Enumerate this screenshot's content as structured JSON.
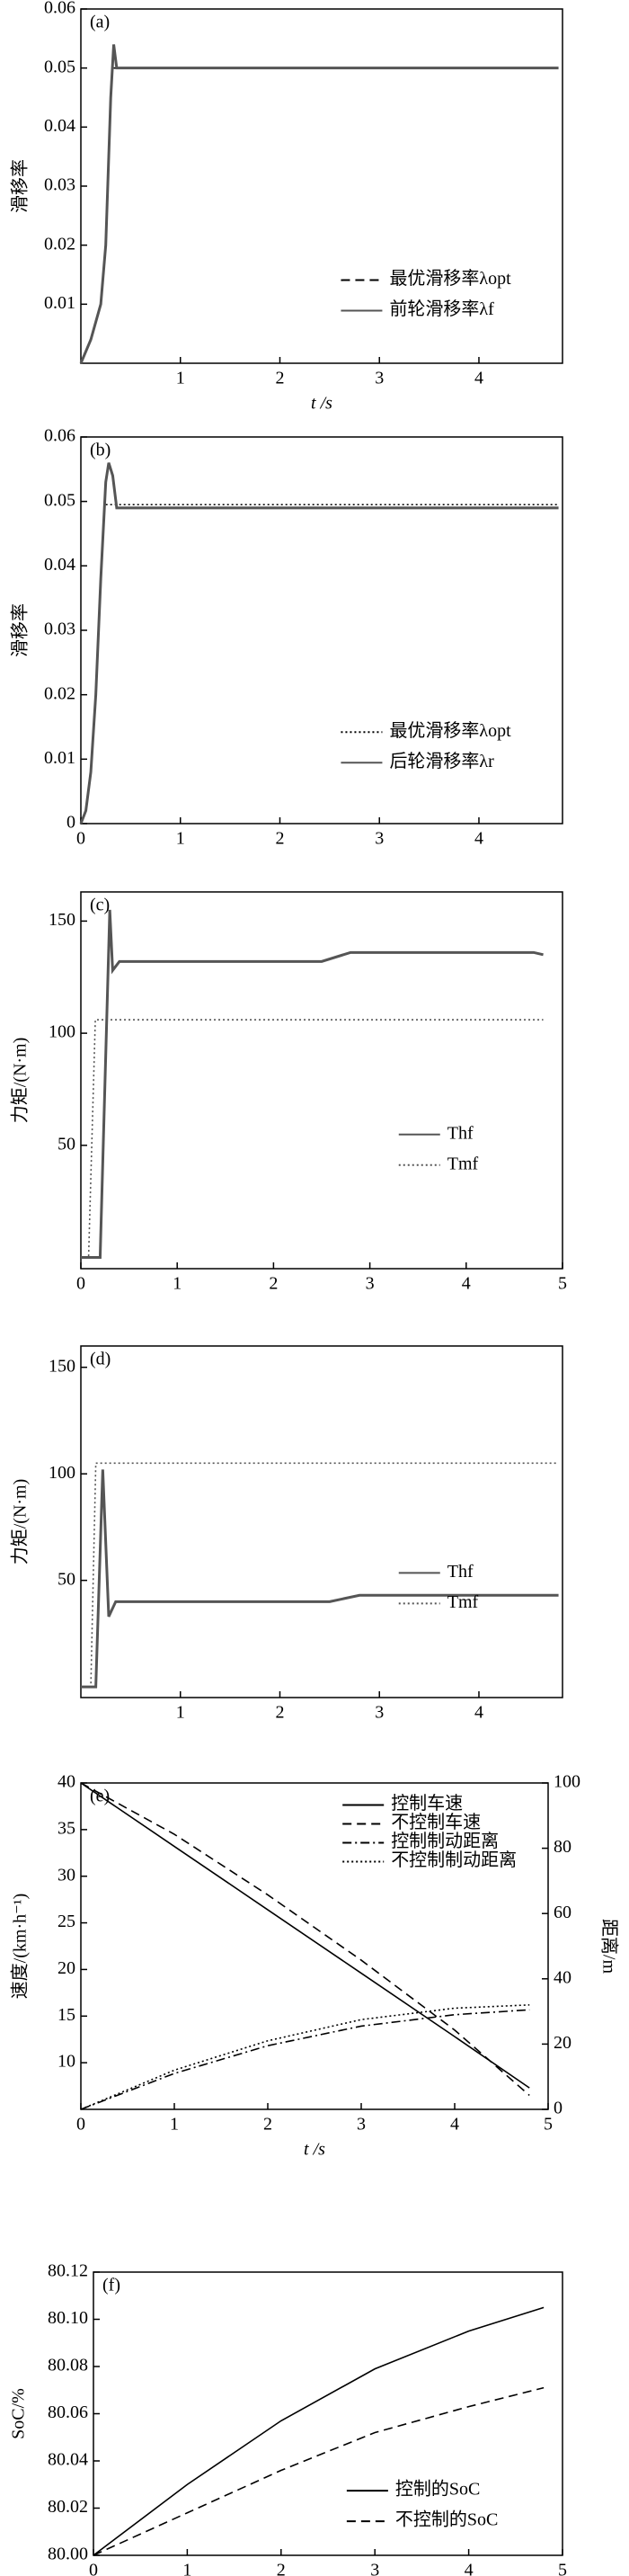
{
  "chart_data": [
    {
      "type": "line",
      "panel_label": "(a)",
      "xlabel": "t /s",
      "ylabel": "滑移率",
      "xlim": [
        0,
        4.84
      ],
      "ylim": [
        0,
        0.06
      ],
      "xticks": [
        1,
        2,
        3,
        4
      ],
      "yticks": [
        0.01,
        0.02,
        0.03,
        0.04,
        0.05,
        0.06
      ],
      "legend": "lower right",
      "series": [
        {
          "name": "最优滑移率λopt",
          "color": "#000000",
          "style": "dashed",
          "x": [
            0.33,
            4.8
          ],
          "values": [
            0.05,
            0.05
          ]
        },
        {
          "name": "前轮滑移率λf",
          "color": "#555555",
          "style": "solid",
          "x": [
            0,
            0.1,
            0.2,
            0.25,
            0.3,
            0.33,
            0.36,
            0.4,
            4.8
          ],
          "values": [
            0,
            0.004,
            0.01,
            0.02,
            0.045,
            0.054,
            0.05,
            0.05,
            0.05
          ]
        }
      ]
    },
    {
      "type": "line",
      "panel_label": "(b)",
      "ylabel": "滑移率",
      "xlim": [
        0,
        4.84
      ],
      "ylim": [
        0,
        0.06
      ],
      "xticks": [
        0,
        1,
        2,
        3,
        4
      ],
      "yticks": [
        0,
        0.01,
        0.02,
        0.03,
        0.04,
        0.05,
        0.06
      ],
      "legend": "lower right",
      "series": [
        {
          "name": "最优滑移率λopt",
          "color": "#000000",
          "style": "dotted",
          "x": [
            0.25,
            4.8
          ],
          "values": [
            0.0495,
            0.0495
          ]
        },
        {
          "name": "后轮滑移率λr",
          "color": "#555555",
          "style": "solid",
          "x": [
            0,
            0.05,
            0.1,
            0.15,
            0.2,
            0.25,
            0.28,
            0.32,
            0.36,
            4.8
          ],
          "values": [
            0,
            0.002,
            0.008,
            0.02,
            0.038,
            0.053,
            0.056,
            0.054,
            0.049,
            0.049
          ]
        }
      ]
    },
    {
      "type": "line",
      "panel_label": "(c)",
      "ylabel": "力矩/(N·m)",
      "xlim": [
        0,
        5
      ],
      "ylim": [
        -5,
        163
      ],
      "xticks": [
        0,
        1,
        2,
        3,
        4,
        5
      ],
      "yticks": [
        50,
        100,
        150
      ],
      "legend": "center right",
      "series": [
        {
          "name": "Thf",
          "color": "#555555",
          "style": "solid",
          "x": [
            0,
            0.2,
            0.3,
            0.33,
            0.4,
            2.5,
            2.8,
            4.7,
            4.8
          ],
          "values": [
            0,
            0,
            155,
            128,
            132,
            132,
            136,
            136,
            135
          ]
        },
        {
          "name": "Tmf",
          "color": "#555555",
          "style": "dotted",
          "x": [
            0,
            0.08,
            0.15,
            4.8
          ],
          "values": [
            0,
            0,
            106,
            106
          ]
        }
      ]
    },
    {
      "type": "line",
      "panel_label": "(d)",
      "ylabel": "力矩/(N·m)",
      "xlim": [
        0,
        4.84
      ],
      "ylim": [
        -5,
        160
      ],
      "xticks": [
        1,
        2,
        3,
        4
      ],
      "yticks": [
        50,
        100,
        150
      ],
      "legend": "center right",
      "series": [
        {
          "name": "Thf",
          "color": "#555555",
          "style": "solid",
          "x": [
            0,
            0.15,
            0.22,
            0.28,
            0.35,
            2.5,
            2.8,
            4.8
          ],
          "values": [
            0,
            0,
            102,
            33,
            40,
            40,
            43,
            43
          ]
        },
        {
          "name": "Tmf",
          "color": "#555555",
          "style": "dotted",
          "x": [
            0,
            0.1,
            0.15,
            4.8
          ],
          "values": [
            0,
            0,
            105,
            105
          ]
        }
      ]
    },
    {
      "type": "line",
      "panel_label": "(e)",
      "xlabel": "t /s",
      "ylabel": "速度/(km·h⁻¹)",
      "y2label": "距离/m",
      "xlim": [
        0,
        5
      ],
      "ylim": [
        5,
        40
      ],
      "y2lim": [
        0,
        100
      ],
      "xticks": [
        0,
        1,
        2,
        3,
        4,
        5
      ],
      "yticks": [
        10,
        15,
        20,
        25,
        30,
        35,
        40
      ],
      "y2ticks": [
        0,
        20,
        40,
        60,
        80,
        100
      ],
      "legend": "upper right",
      "series": [
        {
          "name": "控制车速",
          "color": "#000000",
          "style": "solid",
          "x": [
            0,
            1,
            2,
            3,
            4,
            4.8
          ],
          "values": [
            40,
            33.2,
            26.4,
            19.6,
            12.8,
            7.3
          ]
        },
        {
          "name": "不控制车速",
          "color": "#000000",
          "style": "dashed",
          "x": [
            0,
            1,
            2,
            3,
            4,
            4.8
          ],
          "values": [
            40,
            34.5,
            28,
            21,
            13.5,
            6.5
          ]
        },
        {
          "name": "控制制动距离",
          "color": "#000000",
          "style": "dashdot",
          "axis": "y2",
          "x": [
            0,
            1,
            2,
            3,
            4,
            4.8
          ],
          "values": [
            0,
            11,
            19.5,
            25.5,
            29,
            30.5
          ]
        },
        {
          "name": "不控制制动距离",
          "color": "#000000",
          "style": "dotted",
          "axis": "y2",
          "x": [
            0,
            1,
            2,
            3,
            4,
            4.8
          ],
          "values": [
            0,
            12,
            21,
            27.5,
            31,
            32
          ]
        }
      ]
    },
    {
      "type": "line",
      "panel_label": "(f)",
      "xlabel": "t /s",
      "ylabel": "SoC/%",
      "xlim": [
        0,
        5
      ],
      "ylim": [
        80,
        80.12
      ],
      "xticks": [
        0,
        1,
        2,
        3,
        4,
        5
      ],
      "yticks": [
        {
          "value": 80,
          "label": "80.00"
        },
        {
          "value": 80.02,
          "label": "80.02"
        },
        {
          "value": 80.04,
          "label": "80.04"
        },
        {
          "value": 80.06,
          "label": "80.06"
        },
        {
          "value": 80.08,
          "label": "80.08"
        },
        {
          "value": 80.1,
          "label": "80.10"
        },
        {
          "value": 80.12,
          "label": "80.12"
        }
      ],
      "legend": "lower right",
      "series": [
        {
          "name": "控制的SoC",
          "color": "#000000",
          "style": "solid",
          "x": [
            0,
            1,
            2,
            3,
            4,
            4.8
          ],
          "values": [
            80,
            80.03,
            80.057,
            80.079,
            80.095,
            80.105
          ]
        },
        {
          "name": "不控制的SoC",
          "color": "#000000",
          "style": "dashed",
          "x": [
            0,
            1,
            2,
            3,
            4,
            4.8
          ],
          "values": [
            80,
            80.018,
            80.036,
            80.052,
            80.063,
            80.071
          ]
        }
      ]
    }
  ]
}
